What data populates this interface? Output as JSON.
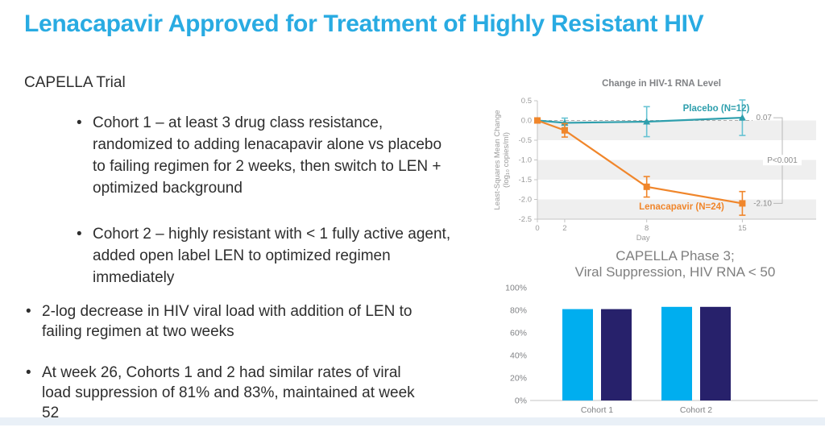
{
  "slide": {
    "title": "Lenacapavir Approved for Treatment of Highly Resistant HIV",
    "accent_color": "#29ABE2"
  },
  "left_panel": {
    "heading": "CAPELLA Trial",
    "sub_bullets": [
      "Cohort 1 – at least 3 drug class resistance, randomized to adding lenacapavir alone vs placebo to failing regimen for 2 weeks, then switch to LEN + optimized background",
      "Cohort 2 – highly resistant with < 1 fully active agent, added open label LEN to optimized regimen immediately"
    ],
    "main_bullets": [
      "2-log decrease in HIV viral load with addition of LEN to failing regimen at two weeks",
      "At week 26, Cohorts 1 and 2 had similar rates of viral load suppression of 81% and 83%, maintained at week 52"
    ]
  },
  "chart_data": [
    {
      "type": "line",
      "title": "Change in HIV-1 RNA Level",
      "xlabel": "Day",
      "ylabel_line1": "Least-Squares Mean Change",
      "ylabel_line2": "(log₁₀ copies/ml)",
      "xlim": [
        0,
        20.4
      ],
      "ylim": [
        -2.5,
        0.5
      ],
      "x_ticks": [
        0,
        2,
        8,
        15
      ],
      "y_ticks": [
        0.5,
        0.0,
        -0.5,
        -1.0,
        -1.5,
        -2.0,
        -2.5
      ],
      "grid_bands": "alternating gray every 0.5 below zero",
      "series": [
        {
          "name": "Placebo (N=12)",
          "color": "#2E9FAD",
          "error_color": "#67C3D3",
          "marker": "triangle",
          "x": [
            0,
            2,
            8,
            15
          ],
          "y": [
            0.0,
            -0.06,
            -0.03,
            0.07
          ],
          "err": [
            0,
            0.12,
            0.38,
            0.45
          ]
        },
        {
          "name": "Lenacapavir (N=24)",
          "color": "#F0862B",
          "error_color": "#F0862B",
          "marker": "square",
          "x": [
            0,
            2,
            8,
            15
          ],
          "y": [
            0.0,
            -0.25,
            -1.68,
            -2.1
          ],
          "err": [
            0,
            0.17,
            0.26,
            0.3
          ]
        }
      ],
      "annotations": {
        "placebo_end_label": "0.07",
        "lenacapavir_end_label": "-2.10",
        "p_value": "P<0.001"
      }
    },
    {
      "type": "bar",
      "title_line1": "CAPELLA Phase 3;",
      "title_line2": "Viral Suppression, HIV RNA < 50",
      "categories": [
        "Cohort 1",
        "Cohort 2"
      ],
      "series": [
        {
          "color": "#00AEEF",
          "values": [
            81,
            83
          ]
        },
        {
          "color": "#27216B",
          "values": [
            81,
            83
          ]
        }
      ],
      "y_ticks": [
        "0%",
        "20%",
        "40%",
        "60%",
        "80%",
        "100%"
      ],
      "ylim": [
        0,
        100
      ],
      "legend": "none"
    }
  ]
}
